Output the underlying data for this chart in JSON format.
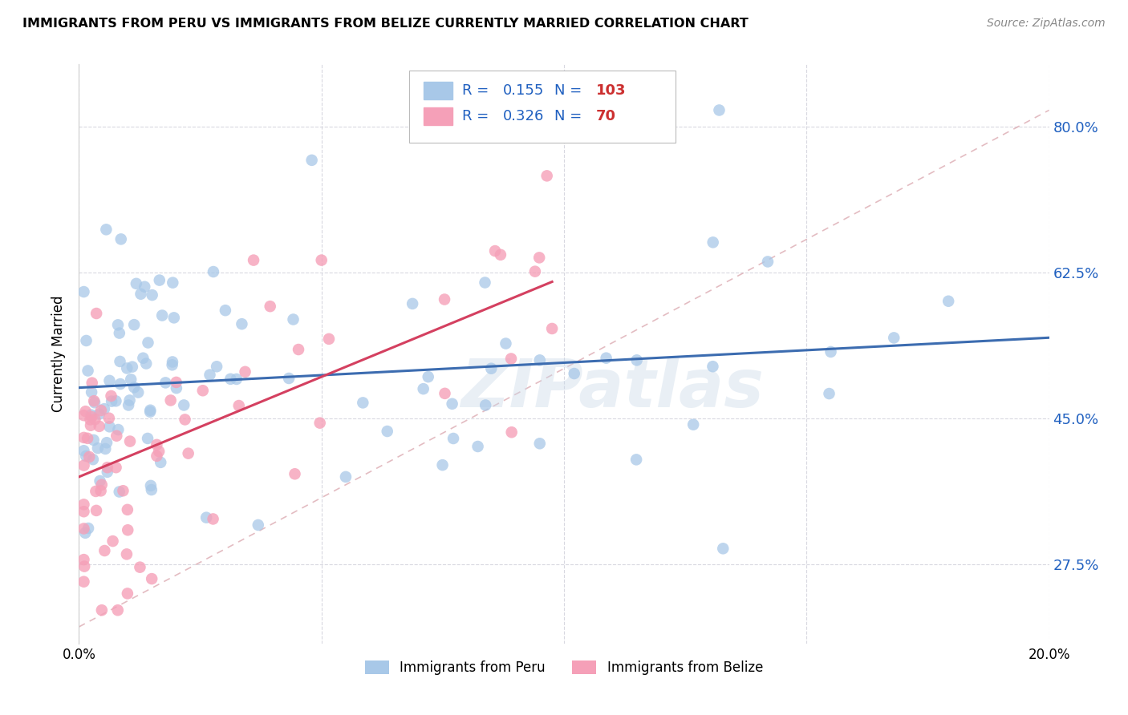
{
  "title": "IMMIGRANTS FROM PERU VS IMMIGRANTS FROM BELIZE CURRENTLY MARRIED CORRELATION CHART",
  "source": "Source: ZipAtlas.com",
  "ylabel": "Currently Married",
  "ylabel_ticks": [
    "27.5%",
    "45.0%",
    "62.5%",
    "80.0%"
  ],
  "ylabel_tick_vals": [
    0.275,
    0.45,
    0.625,
    0.8
  ],
  "x_min": 0.0,
  "x_max": 0.2,
  "y_min": 0.18,
  "y_max": 0.875,
  "legend_r_peru": "0.155",
  "legend_n_peru": "103",
  "legend_r_belize": "0.326",
  "legend_n_belize": "70",
  "legend_label_peru": "Immigrants from Peru",
  "legend_label_belize": "Immigrants from Belize",
  "color_peru": "#a8c8e8",
  "color_belize": "#f5a0b8",
  "trendline_peru_color": "#3c6cb0",
  "trendline_belize_color": "#d44060",
  "diagonal_color": "#d8a0a8",
  "background_color": "#ffffff",
  "watermark": "ZIPatlas",
  "legend_color": "#2060c0",
  "tick_label_color": "#2060c0"
}
